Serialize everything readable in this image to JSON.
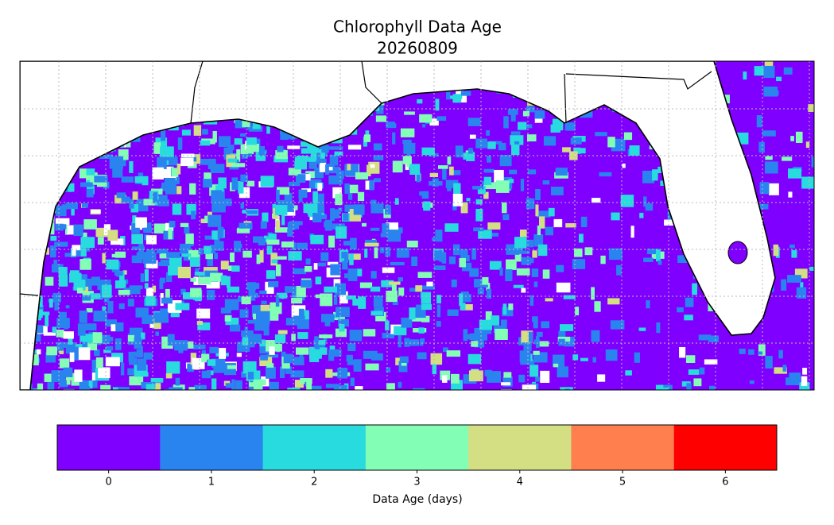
{
  "map": {
    "title": "Chlorophyll Data Age",
    "subtitle": "20260809"
  },
  "colorbar": {
    "label": "Data Age (days)",
    "ticks": [
      0,
      1,
      2,
      3,
      4,
      5,
      6
    ],
    "colors": [
      "#7f00ff",
      "#2a84f0",
      "#27dbdf",
      "#82ffb4",
      "#d4de82",
      "#ff7f4e",
      "#ff0000"
    ]
  }
}
